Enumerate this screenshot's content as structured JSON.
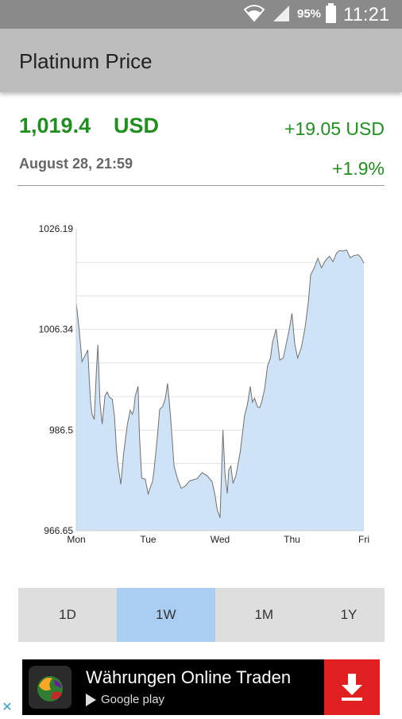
{
  "status_bar": {
    "battery_percent": "95%",
    "time": "11:21",
    "icons": [
      "wifi-icon",
      "signal-icon",
      "battery-icon"
    ]
  },
  "app_bar": {
    "title": "Platinum Price"
  },
  "quote": {
    "price": "1,019.4",
    "currency": "USD",
    "change_abs": "+19.05 USD",
    "timestamp": "August 28, 21:59",
    "change_pct": "+1.9%",
    "positive_color": "#1f8f1f"
  },
  "chart_data": {
    "type": "area",
    "title": "",
    "xlabel": "",
    "ylabel": "",
    "ylim": [
      966.65,
      1026.19
    ],
    "y_ticks": [
      "1026.19",
      "1006.34",
      "986.5",
      "966.65"
    ],
    "x_ticks": [
      "Mon",
      "Tue",
      "Wed",
      "Thu",
      "Fri"
    ],
    "x_tick_positions": [
      0,
      1,
      2,
      3,
      4
    ],
    "grid": true,
    "fill_color": "#cfe3f7",
    "line_color": "#707070",
    "x": [
      0.0,
      0.04,
      0.08,
      0.13,
      0.16,
      0.18,
      0.2,
      0.22,
      0.25,
      0.28,
      0.3,
      0.33,
      0.36,
      0.4,
      0.43,
      0.46,
      0.5,
      0.53,
      0.56,
      0.58,
      0.62,
      0.66,
      0.71,
      0.75,
      0.78,
      0.8,
      0.82,
      0.86,
      0.88,
      0.91,
      0.96,
      1.0,
      1.03,
      1.06,
      1.08,
      1.1,
      1.13,
      1.16,
      1.2,
      1.24,
      1.27,
      1.31,
      1.36,
      1.41,
      1.46,
      1.52,
      1.58,
      1.63,
      1.68,
      1.75,
      1.82,
      1.89,
      1.93,
      1.96,
      2.0,
      2.04,
      2.07,
      2.1,
      2.12,
      2.15,
      2.18,
      2.22,
      2.28,
      2.34,
      2.38,
      2.42,
      2.45,
      2.48,
      2.52,
      2.55,
      2.58,
      2.62,
      2.66,
      2.7,
      2.73,
      2.78,
      2.83,
      2.88,
      2.92,
      2.96,
      3.0,
      3.04,
      3.08,
      3.13,
      3.18,
      3.23,
      3.26,
      3.31,
      3.36,
      3.41,
      3.46,
      3.52,
      3.57,
      3.62,
      3.66,
      3.71,
      3.76,
      3.81,
      3.86,
      3.92,
      3.96,
      4.0
    ],
    "values": [
      1011.6,
      1006.4,
      1000.0,
      1001.4,
      1002.3,
      996.7,
      991.9,
      989.6,
      988.6,
      998.0,
      1003.3,
      991.8,
      987.7,
      993.3,
      994.0,
      993.0,
      992.6,
      989.3,
      982.5,
      979.6,
      975.8,
      982.0,
      987.6,
      990.4,
      989.6,
      990.5,
      993.2,
      995.1,
      985.2,
      977.0,
      976.8,
      973.9,
      975.2,
      976.3,
      978.3,
      981.2,
      985.6,
      990.6,
      991.1,
      992.8,
      995.7,
      989.3,
      979.4,
      976.8,
      975.0,
      975.5,
      976.5,
      976.7,
      976.9,
      978.1,
      977.5,
      976.3,
      973.6,
      970.8,
      969.2,
      986.5,
      977.6,
      974.0,
      978.6,
      979.4,
      976.0,
      977.5,
      982.1,
      989.3,
      991.5,
      995.1,
      992.0,
      992.8,
      991.1,
      990.9,
      992.1,
      994.6,
      999.1,
      1000.7,
      1003.9,
      1006.4,
      1000.3,
      1000.7,
      1003.5,
      1006.2,
      1009.5,
      1003.4,
      1000.7,
      1002.8,
      1006.5,
      1012.0,
      1017.1,
      1018.5,
      1020.4,
      1018.5,
      1019.8,
      1020.8,
      1019.7,
      1021.4,
      1021.9,
      1021.8,
      1022.0,
      1020.5,
      1020.9,
      1021.1,
      1020.5,
      1019.4
    ]
  },
  "periods": {
    "options": [
      "1D",
      "1W",
      "1M",
      "1Y"
    ],
    "selected": "1W",
    "selected_color": "#aacdf2"
  },
  "ad": {
    "title": "Währungen Online Traden",
    "store": "Google play"
  }
}
